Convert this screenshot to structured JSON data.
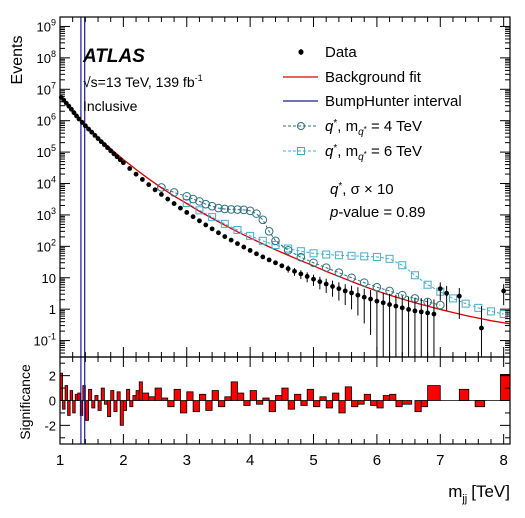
{
  "chart_data": [
    {
      "type": "scatter",
      "panel": "main",
      "experiment": "ATLAS",
      "energy_label": "√s=13 TeV, 139 fb",
      "energy_superscript": "-1",
      "selection_label": "Inclusive",
      "ylabel": "Events",
      "yscale": "log",
      "ylim": [
        0.03,
        2000000000
      ],
      "xlim": [
        1,
        8.1
      ],
      "y_tick_labels": [
        {
          "value": 0.1,
          "base": "10",
          "exp": "-1"
        },
        {
          "value": 1,
          "base": "1",
          "exp": ""
        },
        {
          "value": 10,
          "base": "10",
          "exp": ""
        },
        {
          "value": 100,
          "base": "10",
          "exp": "2"
        },
        {
          "value": 1000,
          "base": "10",
          "exp": "3"
        },
        {
          "value": 10000,
          "base": "10",
          "exp": "4"
        },
        {
          "value": 100000,
          "base": "10",
          "exp": "5"
        },
        {
          "value": 1000000,
          "base": "10",
          "exp": "6"
        },
        {
          "value": 10000000,
          "base": "10",
          "exp": "7"
        },
        {
          "value": 100000000,
          "base": "10",
          "exp": "8"
        },
        {
          "value": 1000000000,
          "base": "10",
          "exp": "9"
        }
      ],
      "legend": {
        "placement": "top-right",
        "entries": [
          {
            "label": "Data",
            "style": "marker",
            "color": "#000000"
          },
          {
            "label": "Background fit",
            "style": "line",
            "color": "#e00000"
          },
          {
            "label": "BumpHunter interval",
            "style": "line",
            "color": "#1a1a99"
          },
          {
            "label": "q*, m_q* = 4 TeV",
            "style": "circle",
            "color": "#2e6f80"
          },
          {
            "label": "q*, m_q* = 6 TeV",
            "style": "square",
            "color": "#44aecf"
          }
        ]
      },
      "annotation_signal": "q*,  σ × 10",
      "annotation_pvalue": "p-value = 0.89",
      "bumphunter_interval": [
        1.33,
        1.39
      ],
      "background_fit": {
        "x": [
          1.0,
          1.1,
          1.2,
          1.3,
          1.4,
          1.5,
          1.6,
          1.7,
          1.8,
          2.0,
          2.2,
          2.4,
          2.6,
          2.8,
          3.0,
          3.2,
          3.4,
          3.6,
          3.8,
          4.0,
          4.2,
          4.4,
          4.6,
          4.8,
          5.0,
          5.2,
          5.4,
          5.6,
          5.8,
          6.0,
          6.2,
          6.4,
          6.6,
          6.8,
          7.0,
          7.2,
          7.4,
          7.6,
          7.8,
          8.0,
          8.1
        ],
        "y": [
          6000000,
          3600000,
          2100000,
          1250000,
          760000,
          470000,
          300000,
          195000,
          128000,
          58000,
          28000,
          14000,
          7300,
          4000,
          2300,
          1300,
          780,
          470,
          290,
          185,
          120,
          78,
          52,
          35,
          24,
          16,
          11,
          7.6,
          5.3,
          3.8,
          2.8,
          2.1,
          1.6,
          1.25,
          0.98,
          0.78,
          0.63,
          0.52,
          0.43,
          0.37,
          0.34
        ]
      },
      "data": {
        "x": [
          1.02,
          1.06,
          1.1,
          1.14,
          1.18,
          1.22,
          1.26,
          1.3,
          1.35,
          1.4,
          1.45,
          1.5,
          1.55,
          1.6,
          1.65,
          1.7,
          1.75,
          1.8,
          1.85,
          1.9,
          1.95,
          2.0,
          2.1,
          2.2,
          2.3,
          2.4,
          2.5,
          2.6,
          2.7,
          2.8,
          2.9,
          3.0,
          3.1,
          3.2,
          3.3,
          3.4,
          3.5,
          3.6,
          3.7,
          3.8,
          3.9,
          4.0,
          4.1,
          4.2,
          4.3,
          4.4,
          4.5,
          4.6,
          4.7,
          4.8,
          4.9,
          5.0,
          5.1,
          5.2,
          5.3,
          5.4,
          5.5,
          5.6,
          5.7,
          5.8,
          5.9,
          6.0,
          6.1,
          6.2,
          6.3,
          6.4,
          6.5,
          6.6,
          6.7,
          6.8,
          6.9,
          7.0,
          7.1,
          7.3,
          7.65,
          8.0
        ],
        "y": [
          5500000,
          4500000,
          3600000,
          2900000,
          2300000,
          1800000,
          1420000,
          1130000,
          880000,
          690000,
          540000,
          430000,
          340000,
          270000,
          215000,
          172000,
          138000,
          110000,
          88000,
          71000,
          57000,
          46000,
          30000,
          19800,
          13500,
          9200,
          6300,
          4500,
          3200,
          2300,
          1650,
          1200,
          880,
          650,
          480,
          360,
          270,
          205,
          158,
          122,
          95,
          74,
          58,
          46,
          37,
          30,
          24,
          19.5,
          16,
          13.2,
          11,
          9,
          7.5,
          6.3,
          5.3,
          4.5,
          3.8,
          3.3,
          2.8,
          2.4,
          2.1,
          1.8,
          1.6,
          1.4,
          1.25,
          1.1,
          0.98,
          0.88,
          0.82,
          0.76,
          0.7,
          4.5,
          3.2,
          2.6,
          0.25,
          3.8
        ]
      },
      "signal_4TeV": {
        "x": [
          2.6,
          2.8,
          3.0,
          3.1,
          3.2,
          3.3,
          3.4,
          3.5,
          3.6,
          3.7,
          3.8,
          3.9,
          4.0,
          4.1,
          4.2,
          4.3,
          4.4,
          4.6,
          4.8,
          5.0,
          5.2,
          5.4,
          5.6,
          5.8,
          6.0,
          6.2,
          6.4,
          6.6,
          6.8,
          7.0
        ],
        "y": [
          7500,
          5200,
          3900,
          3200,
          2700,
          2200,
          1900,
          1650,
          1550,
          1500,
          1480,
          1450,
          1350,
          1100,
          700,
          300,
          150,
          75,
          45,
          30,
          21,
          14.5,
          10,
          7,
          5,
          3.8,
          2.8,
          2.2,
          1.7,
          1.35
        ]
      },
      "signal_6TeV": {
        "x": [
          3.0,
          3.2,
          3.4,
          3.6,
          3.8,
          4.0,
          4.2,
          4.4,
          4.6,
          4.8,
          5.0,
          5.2,
          5.4,
          5.6,
          5.8,
          6.0,
          6.2,
          6.4,
          6.6,
          6.8,
          7.0,
          7.2,
          7.4,
          7.6,
          7.8,
          8.0
        ],
        "y": [
          2400,
          1400,
          850,
          520,
          330,
          215,
          150,
          110,
          85,
          70,
          60,
          55,
          52,
          50,
          48,
          46,
          40,
          25,
          12,
          6,
          3.6,
          2.2,
          1.5,
          1.1,
          0.85,
          0.7
        ]
      }
    },
    {
      "type": "bar",
      "panel": "ratio",
      "ylabel": "Significance",
      "xlabel": "m",
      "xlabel_subscript": "jj",
      "xlabel_unit": "[TeV]",
      "xlim": [
        1,
        8.1
      ],
      "ylim": [
        -3.5,
        3.5
      ],
      "x_tick_labels": [
        "1",
        "2",
        "3",
        "4",
        "5",
        "6",
        "7",
        "8"
      ],
      "y_tick_labels": [
        "-2",
        "0",
        "2"
      ],
      "bar_color": "#ff0000",
      "bins": [
        {
          "x0": 1.0,
          "x1": 1.04,
          "v": 2.2
        },
        {
          "x0": 1.04,
          "x1": 1.08,
          "v": -0.7
        },
        {
          "x0": 1.08,
          "x1": 1.12,
          "v": 1.2
        },
        {
          "x0": 1.12,
          "x1": 1.16,
          "v": -1.2
        },
        {
          "x0": 1.16,
          "x1": 1.2,
          "v": 0.8
        },
        {
          "x0": 1.2,
          "x1": 1.24,
          "v": -1.0
        },
        {
          "x0": 1.24,
          "x1": 1.28,
          "v": 0.5
        },
        {
          "x0": 1.28,
          "x1": 1.32,
          "v": 0.6
        },
        {
          "x0": 1.32,
          "x1": 1.36,
          "v": -1.2
        },
        {
          "x0": 1.36,
          "x1": 1.4,
          "v": 1.2
        },
        {
          "x0": 1.4,
          "x1": 1.45,
          "v": -1.6
        },
        {
          "x0": 1.45,
          "x1": 1.5,
          "v": 0.9
        },
        {
          "x0": 1.5,
          "x1": 1.55,
          "v": -0.6
        },
        {
          "x0": 1.55,
          "x1": 1.6,
          "v": 0.4
        },
        {
          "x0": 1.6,
          "x1": 1.65,
          "v": -0.8
        },
        {
          "x0": 1.65,
          "x1": 1.7,
          "v": 1.0
        },
        {
          "x0": 1.7,
          "x1": 1.75,
          "v": -0.3
        },
        {
          "x0": 1.75,
          "x1": 1.8,
          "v": -1.3
        },
        {
          "x0": 1.8,
          "x1": 1.85,
          "v": 0.8
        },
        {
          "x0": 1.85,
          "x1": 1.9,
          "v": -0.9
        },
        {
          "x0": 1.9,
          "x1": 1.95,
          "v": 0.7
        },
        {
          "x0": 1.95,
          "x1": 2.0,
          "v": -2.0
        },
        {
          "x0": 2.0,
          "x1": 2.05,
          "v": -0.8
        },
        {
          "x0": 2.05,
          "x1": 2.1,
          "v": 0.9
        },
        {
          "x0": 2.1,
          "x1": 2.15,
          "v": -0.5
        },
        {
          "x0": 2.15,
          "x1": 2.2,
          "v": 0.4
        },
        {
          "x0": 2.2,
          "x1": 2.25,
          "v": 0.8
        },
        {
          "x0": 2.25,
          "x1": 2.3,
          "v": 1.5
        },
        {
          "x0": 2.3,
          "x1": 2.4,
          "v": 0.6
        },
        {
          "x0": 2.4,
          "x1": 2.5,
          "v": 0.3
        },
        {
          "x0": 2.5,
          "x1": 2.6,
          "v": 1.0
        },
        {
          "x0": 2.6,
          "x1": 2.7,
          "v": 0.2
        },
        {
          "x0": 2.7,
          "x1": 2.8,
          "v": -0.5
        },
        {
          "x0": 2.8,
          "x1": 2.9,
          "v": 0.9
        },
        {
          "x0": 2.9,
          "x1": 3.0,
          "v": -1.0
        },
        {
          "x0": 3.0,
          "x1": 3.1,
          "v": 0.7
        },
        {
          "x0": 3.1,
          "x1": 3.2,
          "v": -0.9
        },
        {
          "x0": 3.2,
          "x1": 3.3,
          "v": 0.5
        },
        {
          "x0": 3.3,
          "x1": 3.4,
          "v": -0.8
        },
        {
          "x0": 3.4,
          "x1": 3.5,
          "v": 0.8
        },
        {
          "x0": 3.5,
          "x1": 3.6,
          "v": -0.5
        },
        {
          "x0": 3.6,
          "x1": 3.7,
          "v": 0.3
        },
        {
          "x0": 3.7,
          "x1": 3.8,
          "v": 1.5
        },
        {
          "x0": 3.8,
          "x1": 3.9,
          "v": 0.6
        },
        {
          "x0": 3.9,
          "x1": 4.0,
          "v": -0.4
        },
        {
          "x0": 4.0,
          "x1": 4.1,
          "v": 0.8
        },
        {
          "x0": 4.1,
          "x1": 4.2,
          "v": -0.3
        },
        {
          "x0": 4.2,
          "x1": 4.3,
          "v": 0.2
        },
        {
          "x0": 4.3,
          "x1": 4.4,
          "v": -0.9
        },
        {
          "x0": 4.4,
          "x1": 4.5,
          "v": 0.4
        },
        {
          "x0": 4.5,
          "x1": 4.6,
          "v": 1.0
        },
        {
          "x0": 4.6,
          "x1": 4.7,
          "v": -0.7
        },
        {
          "x0": 4.7,
          "x1": 4.8,
          "v": 0.5
        },
        {
          "x0": 4.8,
          "x1": 4.9,
          "v": -0.4
        },
        {
          "x0": 4.9,
          "x1": 5.0,
          "v": 0.9
        },
        {
          "x0": 5.0,
          "x1": 5.1,
          "v": -0.5
        },
        {
          "x0": 5.1,
          "x1": 5.2,
          "v": 0.3
        },
        {
          "x0": 5.2,
          "x1": 5.3,
          "v": -0.6
        },
        {
          "x0": 5.3,
          "x1": 5.4,
          "v": 0.6
        },
        {
          "x0": 5.4,
          "x1": 5.5,
          "v": -1.0
        },
        {
          "x0": 5.5,
          "x1": 5.6,
          "v": 1.1
        },
        {
          "x0": 5.6,
          "x1": 5.7,
          "v": -0.5
        },
        {
          "x0": 5.7,
          "x1": 5.8,
          "v": -0.3
        },
        {
          "x0": 5.8,
          "x1": 5.9,
          "v": 0.5
        },
        {
          "x0": 5.9,
          "x1": 6.0,
          "v": -0.4
        },
        {
          "x0": 6.0,
          "x1": 6.1,
          "v": -0.6
        },
        {
          "x0": 6.1,
          "x1": 6.2,
          "v": 0.4
        },
        {
          "x0": 6.2,
          "x1": 6.3,
          "v": 0.5
        },
        {
          "x0": 6.3,
          "x1": 6.4,
          "v": -0.5
        },
        {
          "x0": 6.4,
          "x1": 6.55,
          "v": -0.3
        },
        {
          "x0": 6.6,
          "x1": 6.7,
          "v": -0.9
        },
        {
          "x0": 6.7,
          "x1": 6.8,
          "v": -0.5
        },
        {
          "x0": 6.8,
          "x1": 7.0,
          "v": 1.2
        },
        {
          "x0": 7.3,
          "x1": 7.45,
          "v": 0.9
        },
        {
          "x0": 7.55,
          "x1": 7.7,
          "v": -0.5
        },
        {
          "x0": 7.95,
          "x1": 8.1,
          "v": 2.1
        }
      ]
    }
  ]
}
